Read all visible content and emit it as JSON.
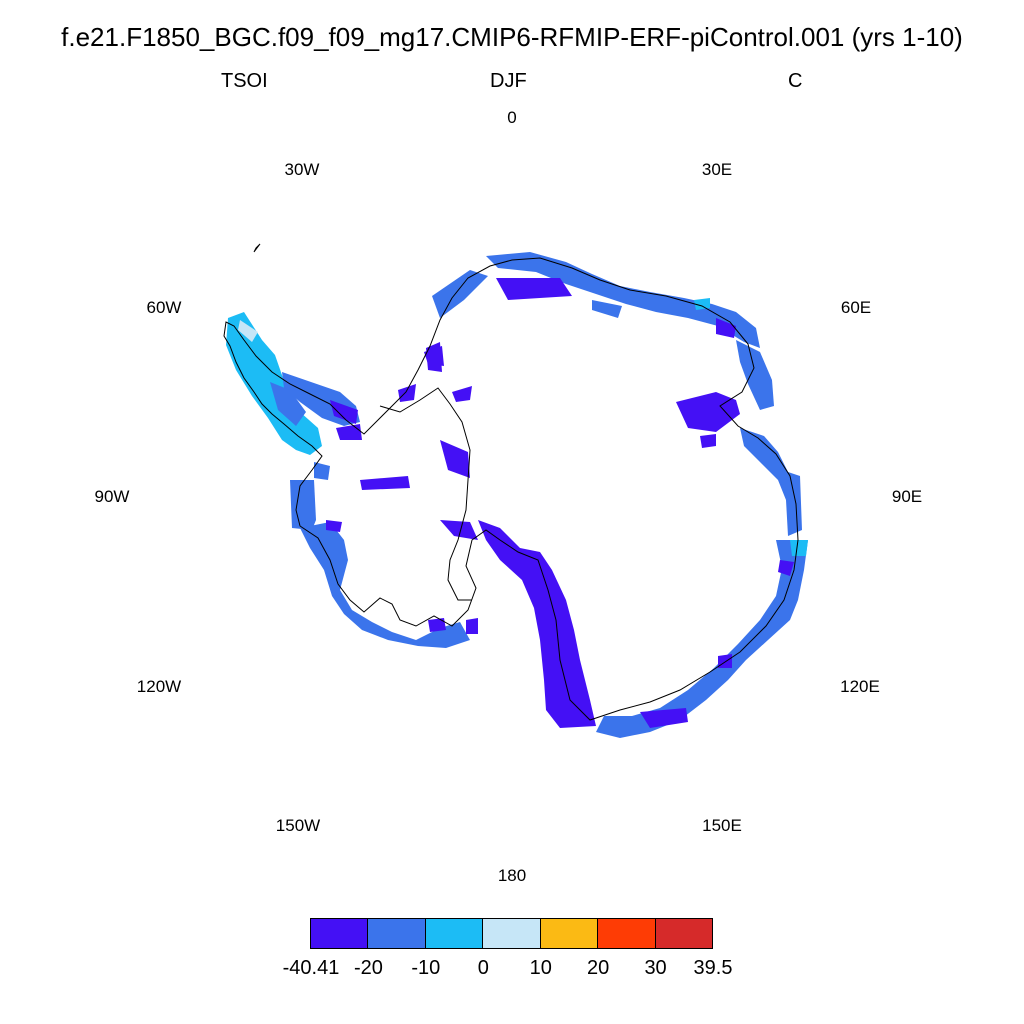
{
  "title": "f.e21.F1850_BGC.f09_f09_mg17.CMIP6-RFMIP-ERF-piControl.001 (yrs 1-10)",
  "subtitle_left": "TSOI",
  "subtitle_center": "DJF",
  "subtitle_right": "C",
  "longitude_labels": {
    "lon_0": "0",
    "lon_30e": "30E",
    "lon_60e": "60E",
    "lon_90e": "90E",
    "lon_120e": "120E",
    "lon_150e": "150E",
    "lon_180": "180",
    "lon_150w": "150W",
    "lon_120w": "120W",
    "lon_90w": "90W",
    "lon_60w": "60W",
    "lon_30w": "30W"
  },
  "colorbar": {
    "colors": [
      "#4410f5",
      "#3b74eb",
      "#1cbcf5",
      "#c6e6f7",
      "#fbba14",
      "#fe3c05",
      "#d62a2a"
    ],
    "labels": [
      "-40.41",
      "-20",
      "-10",
      "0",
      "10",
      "20",
      "30",
      "39.5"
    ]
  }
}
